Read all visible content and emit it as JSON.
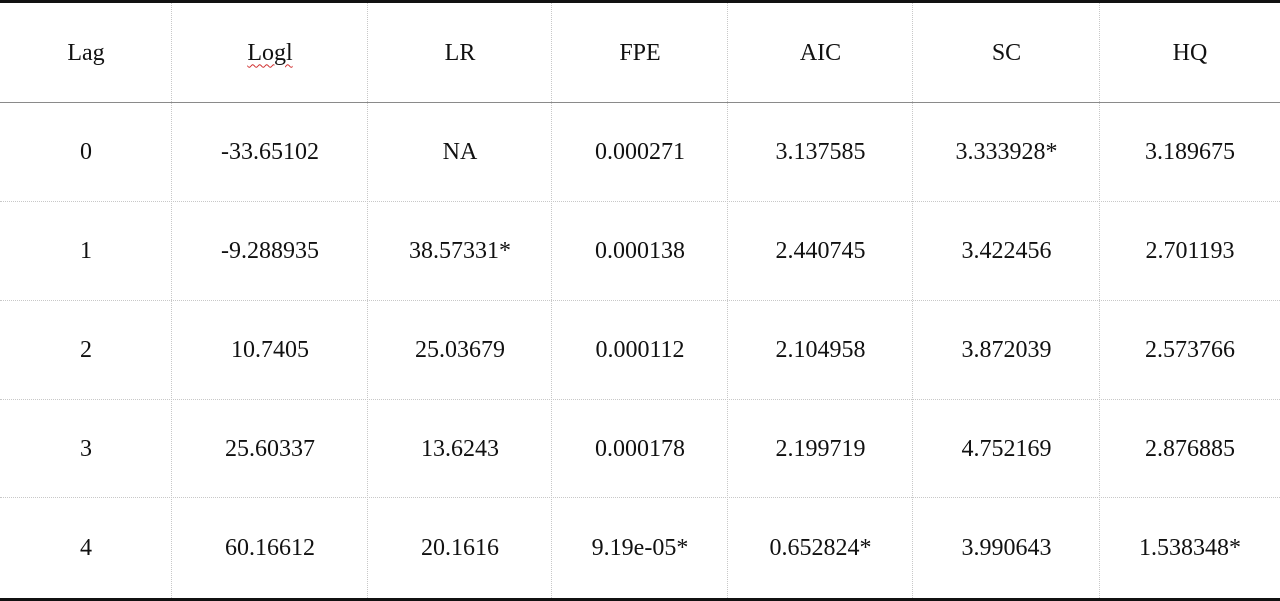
{
  "table": {
    "header": [
      "Lag",
      "Logl",
      "LR",
      "FPE",
      "AIC",
      "SC",
      "HQ"
    ],
    "rows": [
      [
        "0",
        "-33.65102",
        "NA",
        "0.000271",
        "3.137585",
        "3.333928*",
        "3.189675"
      ],
      [
        "1",
        "-9.288935",
        "38.57331*",
        "0.000138",
        "2.440745",
        "3.422456",
        "2.701193"
      ],
      [
        "2",
        "10.7405",
        "25.03679",
        "0.000112",
        "2.104958",
        "3.872039",
        "2.573766"
      ],
      [
        "3",
        "25.60337",
        "13.6243",
        "0.000178",
        "2.199719",
        "4.752169",
        "2.876885"
      ],
      [
        "4",
        "60.16612",
        "20.1616",
        "9.19e-05*",
        "0.652824*",
        "3.990643",
        "1.538348*"
      ]
    ]
  }
}
